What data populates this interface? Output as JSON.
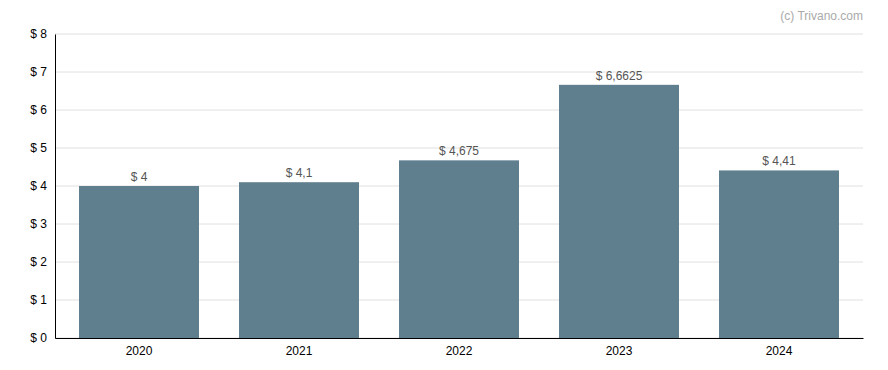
{
  "chart_data": {
    "type": "bar",
    "categories": [
      "2020",
      "2021",
      "2022",
      "2023",
      "2024"
    ],
    "values": [
      4.0,
      4.1,
      4.675,
      6.6625,
      4.41
    ],
    "value_labels": [
      "$ 4",
      "$ 4,1",
      "$ 4,675",
      "$ 6,6625",
      "$ 4,41"
    ],
    "data_labels": true,
    "color": "#5f7f8e",
    "ylim": [
      0,
      8
    ],
    "yticks": [
      {
        "value": 0,
        "label": "$ 0"
      },
      {
        "value": 1,
        "label": "$ 1"
      },
      {
        "value": 2,
        "label": "$ 2"
      },
      {
        "value": 3,
        "label": "$ 3"
      },
      {
        "value": 4,
        "label": "$ 4"
      },
      {
        "value": 5,
        "label": "$ 5"
      },
      {
        "value": 6,
        "label": "$ 6"
      },
      {
        "value": 7,
        "label": "$ 7"
      },
      {
        "value": 8,
        "label": "$ 8"
      }
    ],
    "grid": true,
    "annotations": [
      "(c) Trivano.com"
    ]
  }
}
